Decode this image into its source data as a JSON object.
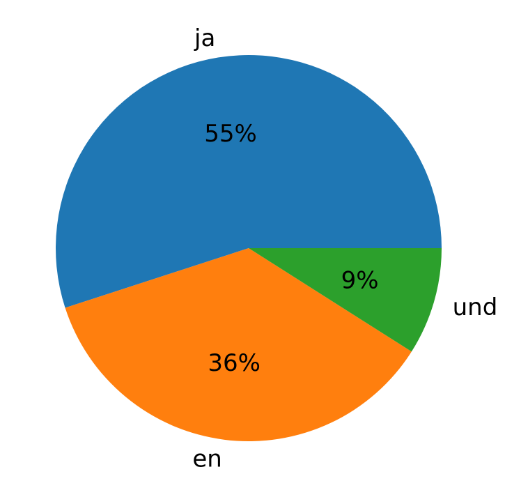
{
  "chart_data": {
    "type": "pie",
    "title": "",
    "start_angle_deg": 0,
    "direction": "counterclockwise",
    "slices": [
      {
        "label": "ja",
        "value": 55,
        "pct_label": "55%",
        "color": "#1f77b4"
      },
      {
        "label": "en",
        "value": 36,
        "pct_label": "36%",
        "color": "#ff7f0e"
      },
      {
        "label": "und",
        "value": 9,
        "pct_label": "9%",
        "color": "#2ca02c"
      }
    ]
  }
}
